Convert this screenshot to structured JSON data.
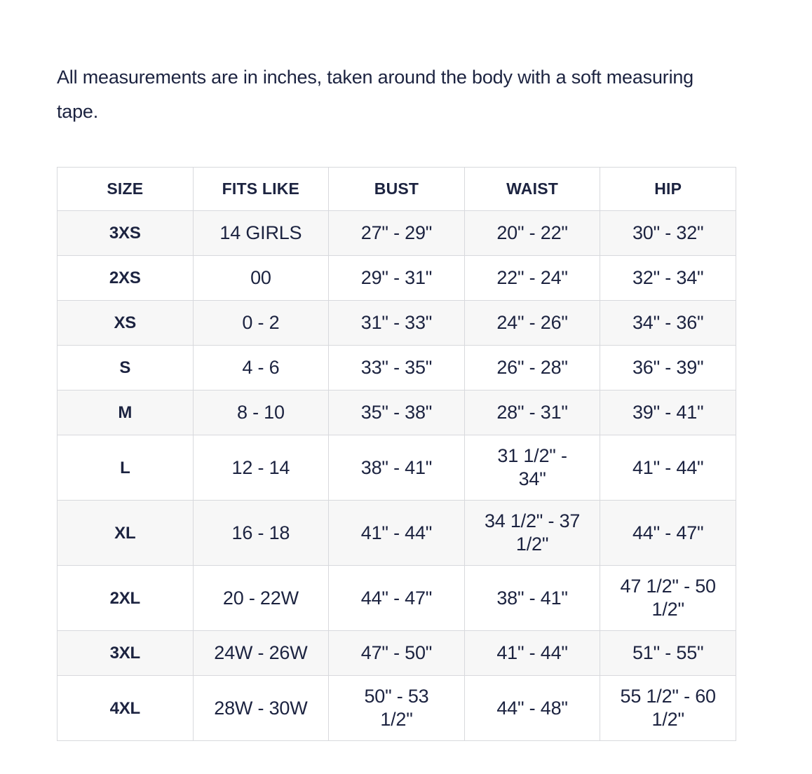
{
  "intro": "All measurements are in inches, taken around the body with a soft measuring tape.",
  "colors": {
    "text_navy": "#1c2340",
    "border_gray": "#d8d9dd",
    "row_alt_bg": "#f7f7f7",
    "page_bg": "#ffffff"
  },
  "table": {
    "columns": [
      "SIZE",
      "FITS LIKE",
      "BUST",
      "WAIST",
      "HIP"
    ],
    "rows": [
      [
        "3XS",
        "14 GIRLS",
        "27\" - 29\"",
        "20\" - 22\"",
        "30\" - 32\""
      ],
      [
        "2XS",
        "00",
        "29\" - 31\"",
        "22\" - 24\"",
        "32\" - 34\""
      ],
      [
        "XS",
        "0 - 2",
        "31\" - 33\"",
        "24\" - 26\"",
        "34\" - 36\""
      ],
      [
        "S",
        "4 - 6",
        "33\" - 35\"",
        "26\" - 28\"",
        "36\" - 39\""
      ],
      [
        "M",
        "8 - 10",
        "35\" - 38\"",
        "28\" - 31\"",
        "39\" - 41\""
      ],
      [
        "L",
        "12 - 14",
        "38\" - 41\"",
        "31 1/2\" -\n34\"",
        "41\" - 44\""
      ],
      [
        "XL",
        "16 - 18",
        "41\" - 44\"",
        "34 1/2\" - 37\n1/2\"",
        "44\" - 47\""
      ],
      [
        "2XL",
        "20 - 22W",
        "44\" - 47\"",
        "38\" - 41\"",
        "47 1/2\" - 50\n1/2\""
      ],
      [
        "3XL",
        "24W - 26W",
        "47\" - 50\"",
        "41\" - 44\"",
        "51\" - 55\""
      ],
      [
        "4XL",
        "28W - 30W",
        "50\" - 53\n1/2\"",
        "44\" - 48\"",
        "55 1/2\" - 60\n1/2\""
      ]
    ]
  }
}
